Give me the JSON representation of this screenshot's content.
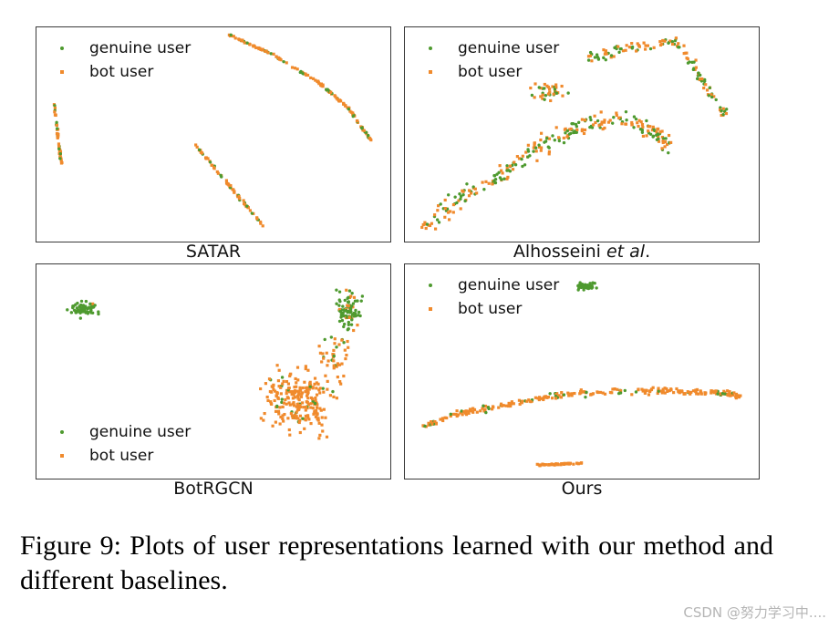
{
  "panels": [
    {
      "title": "SATAR",
      "legend": {
        "genuine": "genuine user",
        "bot": "bot user"
      }
    },
    {
      "title_prefix": "Alhosseini ",
      "title_italic": "et al",
      "title_suffix": ".",
      "legend": {
        "genuine": "genuine user",
        "bot": "bot user"
      }
    },
    {
      "title": "BotRGCN",
      "legend": {
        "genuine": "genuine user",
        "bot": "bot user"
      }
    },
    {
      "title": "Ours",
      "legend": {
        "genuine": "genuine user",
        "bot": "bot user"
      }
    }
  ],
  "caption": "Figure 9: Plots of user representations learned with our method and different baselines.",
  "watermark": "CSDN @努力学习中....",
  "colors": {
    "genuine": "#4e9a2f",
    "bot": "#f08a2c",
    "frame": "#3a3a3a"
  }
}
